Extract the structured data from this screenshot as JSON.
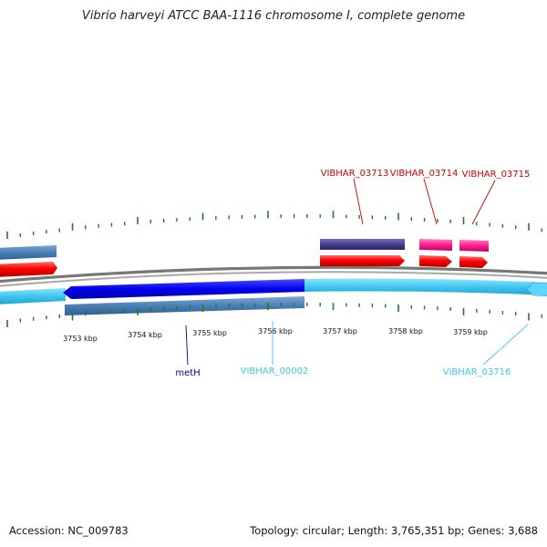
{
  "title": "Vibrio harveyi ATCC BAA-1116 chromosome I, complete genome",
  "footer": {
    "accession": "Accession: NC_009783",
    "topology": "Topology: circular; Length: 3,765,351 bp; Genes: 3,688"
  },
  "scale_labels": [
    "3753 kbp",
    "3754 kbp",
    "3755 kbp",
    "3756 kbp",
    "3757 kbp",
    "3758 kbp",
    "3759 kbp"
  ],
  "gene_labels": {
    "VIBHAR_03713": "VIBHAR_03713",
    "VIBHAR_03714": "VIBHAR_03714",
    "VIBHAR_03715": "VIBHAR_03715",
    "metH": "metH",
    "VIBHAR_00002": "VIBHAR_00002",
    "VIBHAR_03716": "VIBHAR_03716"
  },
  "colors": {
    "forward_cds": "#ff0000",
    "forward_gene": "#4b3d8f",
    "forward_pink": "#ff1f8e",
    "reverse_cds_dark": "#0000ee",
    "reverse_cds_light": "#3fc6f0",
    "reverse_gene": "#4a7fb5",
    "backbone": "#888888",
    "tick": "#1e7d1e",
    "label_red": "#cc0000",
    "label_navy": "#000080",
    "label_cyan": "#3cc8e6"
  }
}
